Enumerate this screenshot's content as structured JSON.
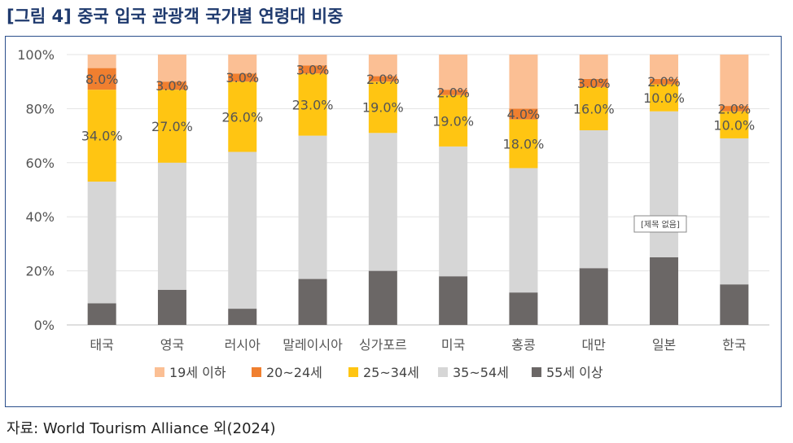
{
  "figure": {
    "title": "[그림 4] 중국 입국 관광객 국가별 연령대 비중",
    "source": "자료: World Tourism Alliance 외(2024)",
    "overlay_label": "[제목 없음]"
  },
  "chart_data": {
    "type": "bar",
    "stacked": true,
    "ylim": [
      0,
      100
    ],
    "yticks": [
      "0%",
      "20%",
      "40%",
      "60%",
      "80%",
      "100%"
    ],
    "grid": true,
    "legend_position": "bottom",
    "categories": [
      "태국",
      "영국",
      "러시아",
      "말레이시아",
      "싱가포르",
      "미국",
      "홍콩",
      "대만",
      "일본",
      "한국"
    ],
    "series": [
      {
        "name": "55세 이상",
        "color": "#6b6766",
        "values": [
          8,
          13,
          6,
          17,
          20,
          18,
          12,
          21,
          25,
          15
        ],
        "labels": [
          "",
          "",
          "",
          "",
          "",
          "",
          "",
          "",
          "",
          ""
        ]
      },
      {
        "name": "35~54세",
        "color": "#d6d6d6",
        "values": [
          45,
          47,
          58,
          53,
          51,
          48,
          46,
          51,
          54,
          54
        ],
        "labels": [
          "",
          "",
          "",
          "",
          "",
          "",
          "",
          "",
          "",
          ""
        ]
      },
      {
        "name": "25~34세",
        "color": "#ffc512",
        "values": [
          34,
          27,
          26,
          23,
          19,
          19,
          18,
          16,
          10,
          10
        ],
        "labels": [
          "34.0%",
          "27.0%",
          "26.0%",
          "23.0%",
          "19.0%",
          "19.0%",
          "18.0%",
          "16.0%",
          "10.0%",
          "10.0%"
        ]
      },
      {
        "name": "20~24세",
        "color": "#f07f2f",
        "values": [
          8,
          3,
          3,
          3,
          2,
          2,
          4,
          3,
          2,
          2
        ],
        "labels": [
          "8.0%",
          "3.0%",
          "3.0%",
          "3.0%",
          "2.0%",
          "2.0%",
          "4.0%",
          "3.0%",
          "2.0%",
          "2.0%"
        ]
      },
      {
        "name": "19세 이하",
        "color": "#fbbf94",
        "values": [
          5,
          10,
          7,
          4,
          8,
          13,
          20,
          9,
          9,
          19
        ],
        "labels": [
          "",
          "",
          "",
          "",
          "",
          "",
          "",
          "",
          "",
          ""
        ]
      }
    ],
    "legend_order": [
      "19세 이하",
      "20~24세",
      "25~34세",
      "35~54세",
      "55세 이상"
    ]
  }
}
